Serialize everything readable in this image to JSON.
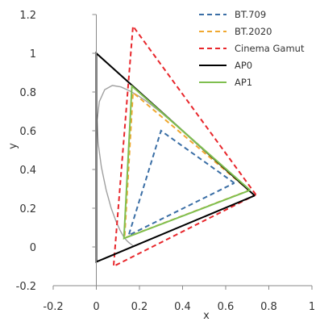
{
  "chart_data": {
    "type": "line",
    "title": "",
    "xlabel": "x",
    "ylabel": "y",
    "xlim": [
      -0.2,
      1
    ],
    "ylim": [
      -0.2,
      1.2
    ],
    "x_ticks": [
      -0.2,
      0,
      0.2,
      0.4,
      0.6,
      0.8,
      1
    ],
    "x_tick_labels": [
      "-0.2",
      "0",
      "0.2",
      "0.4",
      "0.6",
      "0.8",
      "1"
    ],
    "y_ticks": [
      -0.2,
      0,
      0.2,
      0.4,
      0.6,
      0.8,
      1,
      1.2
    ],
    "y_tick_labels": [
      "-0.2",
      "0",
      "0.2",
      "0.4",
      "0.6",
      "0.8",
      "1",
      "1.2"
    ],
    "grid": false,
    "legend_position": "top-right",
    "series": [
      {
        "name": "BT.709",
        "color": "#3a6ea5",
        "style": "dashed",
        "points": [
          [
            0.64,
            0.33
          ],
          [
            0.3,
            0.6
          ],
          [
            0.15,
            0.06
          ],
          [
            0.64,
            0.33
          ]
        ]
      },
      {
        "name": "BT.2020",
        "color": "#f0a830",
        "style": "dashed",
        "points": [
          [
            0.708,
            0.292
          ],
          [
            0.17,
            0.797
          ],
          [
            0.131,
            0.046
          ],
          [
            0.708,
            0.292
          ]
        ]
      },
      {
        "name": "Cinema Gamut",
        "color": "#e8262b",
        "style": "dashed",
        "points": [
          [
            0.74,
            0.27
          ],
          [
            0.17,
            1.14
          ],
          [
            0.08,
            -0.1
          ],
          [
            0.74,
            0.27
          ]
        ]
      },
      {
        "name": "AP0",
        "color": "#000000",
        "style": "solid",
        "points": [
          [
            0.7347,
            0.2653
          ],
          [
            0.0,
            1.0
          ],
          [
            0.0001,
            -0.077
          ],
          [
            0.7347,
            0.2653
          ]
        ]
      },
      {
        "name": "AP1",
        "color": "#7fbf4f",
        "style": "solid",
        "points": [
          [
            0.713,
            0.293
          ],
          [
            0.165,
            0.83
          ],
          [
            0.128,
            0.044
          ],
          [
            0.713,
            0.293
          ]
        ]
      }
    ],
    "reference_curve": {
      "color": "#a0a0a0",
      "style": "solid",
      "points": [
        [
          0.1741,
          0.005
        ],
        [
          0.1738,
          0.0049
        ],
        [
          0.1736,
          0.0049
        ],
        [
          0.1733,
          0.0048
        ],
        [
          0.173,
          0.0048
        ],
        [
          0.1726,
          0.0048
        ],
        [
          0.1721,
          0.0048
        ],
        [
          0.1714,
          0.0051
        ],
        [
          0.1703,
          0.0058
        ],
        [
          0.1689,
          0.0069
        ],
        [
          0.1669,
          0.0086
        ],
        [
          0.1644,
          0.0109
        ],
        [
          0.1611,
          0.0138
        ],
        [
          0.1566,
          0.0177
        ],
        [
          0.151,
          0.0227
        ],
        [
          0.144,
          0.0297
        ],
        [
          0.1355,
          0.0399
        ],
        [
          0.1241,
          0.0578
        ],
        [
          0.1096,
          0.0868
        ],
        [
          0.0913,
          0.1327
        ],
        [
          0.0687,
          0.2007
        ],
        [
          0.0454,
          0.295
        ],
        [
          0.0235,
          0.4127
        ],
        [
          0.0082,
          0.5384
        ],
        [
          0.0039,
          0.6548
        ],
        [
          0.0139,
          0.7502
        ],
        [
          0.0389,
          0.812
        ],
        [
          0.0743,
          0.8338
        ],
        [
          0.1142,
          0.8262
        ],
        [
          0.1547,
          0.8059
        ],
        [
          0.1929,
          0.7816
        ],
        [
          0.2296,
          0.7543
        ],
        [
          0.2658,
          0.7243
        ],
        [
          0.3016,
          0.6923
        ],
        [
          0.3373,
          0.6589
        ],
        [
          0.3731,
          0.6245
        ],
        [
          0.4087,
          0.5896
        ],
        [
          0.4441,
          0.5547
        ],
        [
          0.4788,
          0.5202
        ],
        [
          0.5125,
          0.4866
        ],
        [
          0.5448,
          0.4544
        ],
        [
          0.5752,
          0.4242
        ],
        [
          0.6029,
          0.3965
        ],
        [
          0.627,
          0.3725
        ],
        [
          0.6482,
          0.3514
        ],
        [
          0.6658,
          0.334
        ],
        [
          0.6801,
          0.3197
        ],
        [
          0.6915,
          0.3083
        ],
        [
          0.7006,
          0.2993
        ],
        [
          0.7079,
          0.292
        ],
        [
          0.714,
          0.2859
        ],
        [
          0.719,
          0.2809
        ],
        [
          0.723,
          0.277
        ],
        [
          0.726,
          0.274
        ],
        [
          0.7283,
          0.2717
        ],
        [
          0.73,
          0.27
        ],
        [
          0.7311,
          0.2689
        ],
        [
          0.732,
          0.268
        ],
        [
          0.7327,
          0.2673
        ],
        [
          0.7334,
          0.2666
        ],
        [
          0.734,
          0.266
        ],
        [
          0.7344,
          0.2656
        ],
        [
          0.7346,
          0.2654
        ],
        [
          0.7347,
          0.2653
        ]
      ]
    }
  }
}
